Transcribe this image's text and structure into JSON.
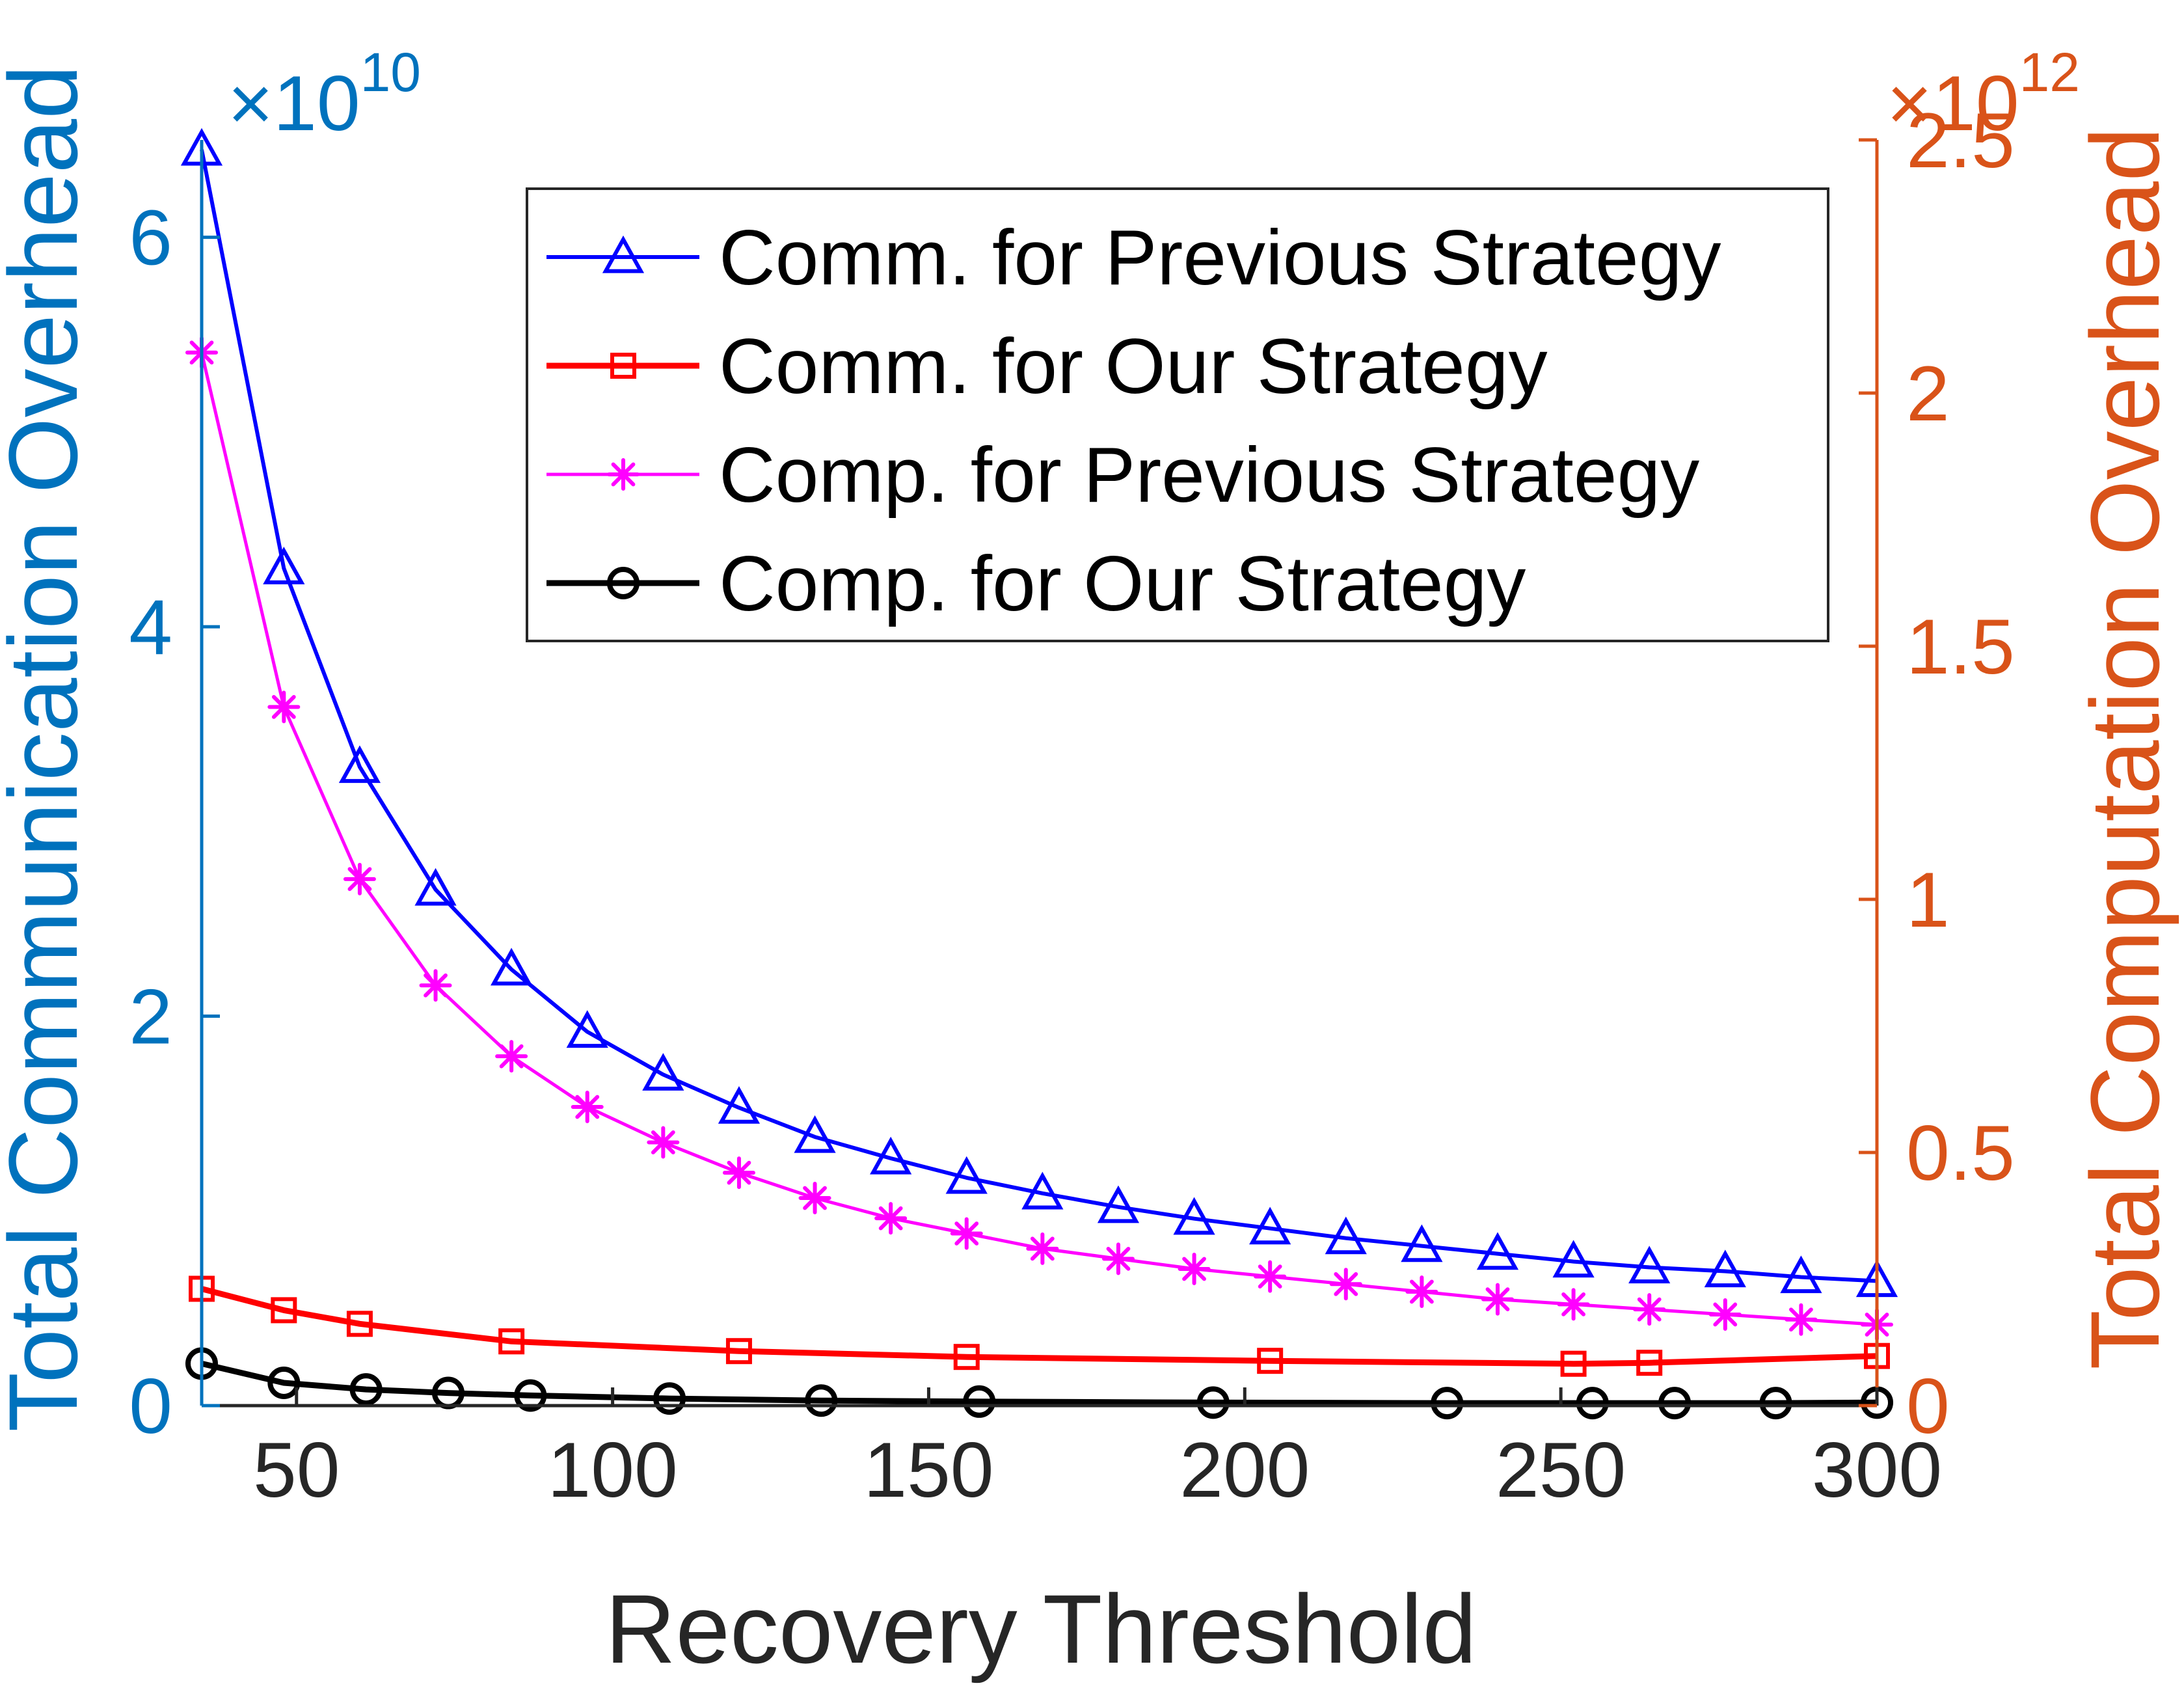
{
  "chart_data": {
    "type": "line",
    "title": "",
    "xlabel": "Recovery Threshold",
    "ylabel_left": "Total Communication Overhead",
    "ylabel_right": "Total Computation Overhead",
    "xlim": [
      35,
      300
    ],
    "ylim_left": [
      0,
      6.5
    ],
    "ylim_right": [
      0,
      2.5
    ],
    "left_multiplier": "×10",
    "left_exponent": "10",
    "right_multiplier": "×10",
    "right_exponent": "12",
    "x_ticks": [
      50,
      100,
      150,
      200,
      250,
      300
    ],
    "x_tick_labels": [
      "50",
      "100",
      "150",
      "200",
      "250",
      "300"
    ],
    "y_left_ticks": [
      0,
      2,
      4,
      6
    ],
    "y_left_tick_labels": [
      "0",
      "2",
      "4",
      "6"
    ],
    "y_right_ticks": [
      0,
      0.5,
      1,
      1.5,
      2,
      2.5
    ],
    "y_right_tick_labels": [
      "0",
      "0.5",
      "1",
      "1.5",
      "2",
      "2.5"
    ],
    "grid": false,
    "legend_position": "top-right",
    "colors": {
      "left_axis": "#0072bd",
      "right_axis": "#d95319",
      "x_axis": "#262626"
    },
    "series": [
      {
        "name": "Comm. for Previous Strategy",
        "axis": "left",
        "color": "#0000ff",
        "marker": "triangle",
        "x": [
          35,
          48,
          60,
          72,
          84,
          96,
          108,
          120,
          132,
          144,
          156,
          168,
          180,
          192,
          204,
          216,
          228,
          240,
          252,
          264,
          276,
          288,
          300
        ],
        "y": [
          6.45,
          4.3,
          3.28,
          2.65,
          2.24,
          1.92,
          1.7,
          1.53,
          1.38,
          1.27,
          1.17,
          1.09,
          1.02,
          0.96,
          0.91,
          0.86,
          0.82,
          0.78,
          0.74,
          0.71,
          0.69,
          0.66,
          0.64
        ]
      },
      {
        "name": "Comm. for Our Strategy",
        "axis": "left",
        "color": "#ff0000",
        "marker": "square",
        "x": [
          35,
          48,
          60,
          84,
          120,
          156,
          204,
          252,
          264,
          300
        ],
        "y": [
          0.6,
          0.49,
          0.42,
          0.33,
          0.28,
          0.25,
          0.23,
          0.215,
          0.22,
          0.255
        ]
      },
      {
        "name": "Comp. for Previous Strategy",
        "axis": "right",
        "color": "#ff00ff",
        "marker": "asterisk",
        "x": [
          35,
          48,
          60,
          72,
          84,
          96,
          108,
          120,
          132,
          144,
          156,
          168,
          180,
          192,
          204,
          216,
          228,
          240,
          252,
          264,
          276,
          288,
          300
        ],
        "y": [
          2.08,
          1.38,
          1.04,
          0.83,
          0.69,
          0.59,
          0.52,
          0.46,
          0.41,
          0.37,
          0.34,
          0.31,
          0.29,
          0.27,
          0.255,
          0.24,
          0.225,
          0.21,
          0.2,
          0.19,
          0.18,
          0.17,
          0.16
        ]
      },
      {
        "name": "Comp. for Our Strategy",
        "axis": "right",
        "color": "#000000",
        "marker": "circle",
        "x": [
          35,
          48,
          61,
          74,
          87,
          109,
          133,
          158,
          195,
          232,
          255,
          268,
          284,
          300
        ],
        "y": [
          0.083,
          0.045,
          0.032,
          0.025,
          0.02,
          0.014,
          0.01,
          0.008,
          0.006,
          0.005,
          0.005,
          0.005,
          0.005,
          0.006
        ]
      }
    ]
  }
}
